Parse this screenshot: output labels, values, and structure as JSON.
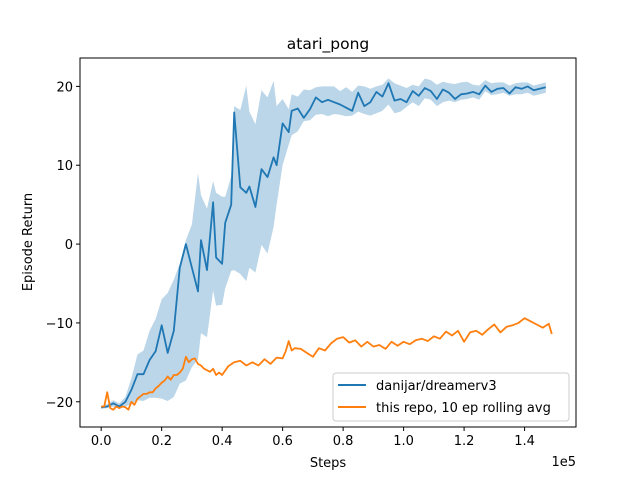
{
  "chart_data": {
    "type": "line",
    "title": "atari_pong",
    "xlabel": "Steps",
    "ylabel": "Episode Return",
    "x_offset_label": "1e5",
    "xlim": [
      -0.07,
      1.57
    ],
    "ylim": [
      -23.2,
      23.6
    ],
    "x_ticks": [
      0.0,
      0.2,
      0.4,
      0.6,
      0.8,
      1.0,
      1.2,
      1.4
    ],
    "x_tick_labels": [
      "0.0",
      "0.2",
      "0.4",
      "0.6",
      "0.8",
      "1.0",
      "1.2",
      "1.4"
    ],
    "y_ticks": [
      -20,
      -10,
      0,
      10,
      20
    ],
    "y_tick_labels": [
      "−20",
      "−10",
      "0",
      "10",
      "20"
    ],
    "grid": false,
    "legend_position": "bottom-right",
    "series": [
      {
        "name": "danijar/dreamerv3",
        "color": "#1f77b4",
        "band_color": "#1f77b4",
        "x": [
          0.0,
          0.02,
          0.04,
          0.06,
          0.08,
          0.1,
          0.12,
          0.14,
          0.16,
          0.18,
          0.2,
          0.22,
          0.24,
          0.26,
          0.28,
          0.3,
          0.32,
          0.33,
          0.35,
          0.37,
          0.38,
          0.4,
          0.41,
          0.43,
          0.44,
          0.46,
          0.48,
          0.49,
          0.51,
          0.53,
          0.55,
          0.57,
          0.58,
          0.6,
          0.62,
          0.63,
          0.65,
          0.67,
          0.69,
          0.71,
          0.73,
          0.75,
          0.77,
          0.79,
          0.81,
          0.83,
          0.85,
          0.87,
          0.89,
          0.91,
          0.93,
          0.95,
          0.97,
          0.99,
          1.01,
          1.03,
          1.05,
          1.07,
          1.09,
          1.11,
          1.13,
          1.15,
          1.17,
          1.19,
          1.21,
          1.23,
          1.25,
          1.27,
          1.29,
          1.31,
          1.33,
          1.35,
          1.37,
          1.39,
          1.41,
          1.43,
          1.45,
          1.47
        ],
        "y": [
          -20.7,
          -20.6,
          -20.2,
          -20.6,
          -20.0,
          -18.5,
          -16.5,
          -16.5,
          -14.7,
          -13.6,
          -10.3,
          -13.8,
          -11.0,
          -3.0,
          0.0,
          -3.0,
          -6.0,
          0.5,
          -3.3,
          5.3,
          -1.7,
          -2.5,
          2.7,
          5.0,
          16.7,
          7.2,
          6.5,
          7.3,
          4.7,
          9.5,
          8.5,
          11.0,
          10.0,
          15.3,
          14.2,
          16.9,
          17.2,
          16.0,
          17.1,
          18.6,
          18.0,
          18.3,
          18.0,
          17.7,
          17.3,
          16.9,
          19.2,
          17.5,
          18.0,
          19.3,
          18.7,
          20.4,
          18.2,
          18.4,
          18.0,
          19.4,
          18.8,
          19.8,
          19.4,
          18.4,
          19.6,
          19.2,
          18.4,
          19.0,
          19.1,
          19.3,
          19.0,
          20.1,
          19.3,
          19.7,
          19.8,
          19.1,
          19.9,
          19.7,
          20.0,
          19.5,
          19.7,
          19.9
        ],
        "band_lower": [
          -20.9,
          -20.8,
          -20.6,
          -20.9,
          -20.6,
          -20.3,
          -19.8,
          -19.9,
          -19.5,
          -19.5,
          -19.6,
          -19.9,
          -19.4,
          -17.7,
          -17.3,
          -15.6,
          -14.6,
          -11.3,
          -11.8,
          -5.9,
          -7.8,
          -7.7,
          -5.6,
          -3.4,
          -3.3,
          -3.8,
          -4.7,
          -3.0,
          -3.6,
          -0.1,
          -1.2,
          2.2,
          5.0,
          10.0,
          12.6,
          13.8,
          14.3,
          15.6,
          15.7,
          16.4,
          16.5,
          16.2,
          16.5,
          16.4,
          16.2,
          16.3,
          16.8,
          16.5,
          16.3,
          16.6,
          16.9,
          17.7,
          16.6,
          16.8,
          17.4,
          18.0,
          17.5,
          18.5,
          18.3,
          17.5,
          18.0,
          18.2,
          18.0,
          18.3,
          18.4,
          18.6,
          18.3,
          19.4,
          18.9,
          19.0,
          19.2,
          18.8,
          19.0,
          19.0,
          19.2,
          18.8,
          19.0,
          19.2
        ],
        "band_upper": [
          -20.5,
          -20.3,
          -19.8,
          -20.2,
          -19.4,
          -17.0,
          -14.0,
          -13.5,
          -11.0,
          -9.5,
          -7.0,
          -6.2,
          -4.5,
          -2.5,
          0.5,
          2.5,
          9.0,
          6.2,
          4.5,
          8.0,
          6.5,
          6.0,
          6.0,
          8.6,
          17.5,
          17.0,
          20.1,
          16.8,
          15.2,
          19.5,
          18.6,
          20.7,
          17.5,
          18.4,
          17.1,
          19.0,
          18.7,
          19.6,
          19.5,
          19.9,
          20.0,
          20.0,
          20.0,
          19.4,
          19.9,
          19.3,
          20.1,
          20.0,
          19.7,
          20.0,
          20.2,
          21.0,
          20.4,
          20.1,
          19.8,
          20.2,
          20.0,
          21.0,
          20.8,
          20.2,
          20.6,
          20.4,
          20.3,
          20.5,
          20.6,
          20.2,
          20.1,
          20.8,
          20.4,
          20.5,
          20.5,
          20.1,
          20.4,
          20.5,
          20.5,
          20.1,
          20.3,
          20.5
        ]
      },
      {
        "name": "this repo, 10 ep rolling avg",
        "color": "#ff7f0e",
        "x": [
          0.0,
          0.01,
          0.02,
          0.03,
          0.04,
          0.05,
          0.06,
          0.07,
          0.08,
          0.09,
          0.1,
          0.11,
          0.12,
          0.13,
          0.14,
          0.15,
          0.16,
          0.17,
          0.18,
          0.19,
          0.2,
          0.21,
          0.22,
          0.23,
          0.24,
          0.25,
          0.26,
          0.27,
          0.28,
          0.29,
          0.3,
          0.31,
          0.32,
          0.33,
          0.34,
          0.35,
          0.36,
          0.37,
          0.38,
          0.39,
          0.4,
          0.42,
          0.44,
          0.46,
          0.48,
          0.5,
          0.52,
          0.54,
          0.56,
          0.58,
          0.6,
          0.61,
          0.62,
          0.63,
          0.64,
          0.66,
          0.68,
          0.7,
          0.72,
          0.74,
          0.76,
          0.78,
          0.8,
          0.82,
          0.84,
          0.86,
          0.88,
          0.9,
          0.92,
          0.94,
          0.96,
          0.98,
          1.0,
          1.02,
          1.04,
          1.06,
          1.08,
          1.1,
          1.12,
          1.14,
          1.16,
          1.18,
          1.2,
          1.22,
          1.24,
          1.26,
          1.28,
          1.3,
          1.32,
          1.34,
          1.36,
          1.38,
          1.4,
          1.42,
          1.44,
          1.46,
          1.48,
          1.49
        ],
        "y": [
          -20.6,
          -20.6,
          -18.8,
          -20.8,
          -21.0,
          -20.6,
          -20.8,
          -20.6,
          -20.7,
          -21.0,
          -20.0,
          -20.4,
          -19.6,
          -19.3,
          -19.0,
          -19.0,
          -18.8,
          -18.8,
          -18.3,
          -18.0,
          -17.6,
          -17.3,
          -16.8,
          -17.2,
          -16.6,
          -16.6,
          -16.3,
          -15.8,
          -14.3,
          -15.0,
          -14.6,
          -14.5,
          -15.2,
          -15.4,
          -15.8,
          -16.0,
          -16.2,
          -15.8,
          -16.6,
          -16.3,
          -16.6,
          -15.5,
          -15.0,
          -14.8,
          -15.4,
          -15.0,
          -15.4,
          -14.6,
          -15.2,
          -14.4,
          -14.5,
          -13.6,
          -12.3,
          -13.5,
          -13.2,
          -13.3,
          -13.8,
          -14.3,
          -13.2,
          -13.5,
          -12.6,
          -12.0,
          -11.8,
          -12.5,
          -12.2,
          -13.0,
          -12.4,
          -13.0,
          -12.8,
          -13.3,
          -12.4,
          -12.9,
          -12.4,
          -12.7,
          -12.2,
          -12.0,
          -12.3,
          -11.7,
          -12.0,
          -11.1,
          -11.6,
          -11.0,
          -12.4,
          -11.2,
          -11.0,
          -11.5,
          -10.8,
          -10.2,
          -11.2,
          -10.5,
          -10.3,
          -10.0,
          -9.4,
          -9.8,
          -10.2,
          -10.6,
          -10.1,
          -11.4
        ]
      }
    ]
  }
}
